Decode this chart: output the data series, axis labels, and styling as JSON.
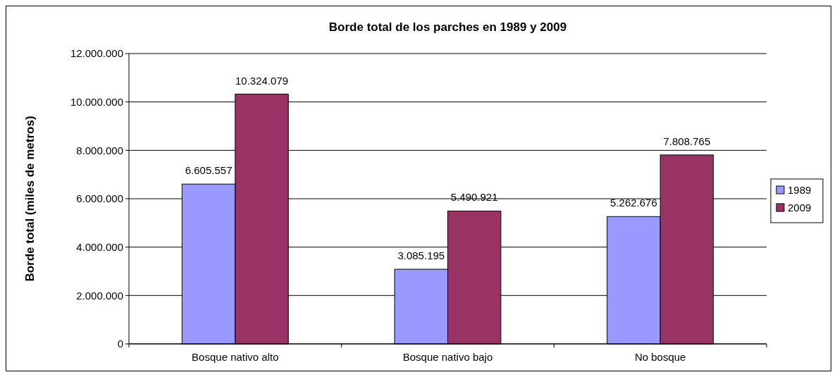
{
  "chart_data": {
    "type": "bar",
    "title": "Borde total de los parches en 1989 y 2009",
    "ylabel": "Borde total (miles de metros)",
    "categories": [
      "Bosque nativo alto",
      "Bosque nativo bajo",
      "No bosque"
    ],
    "series": [
      {
        "name": "1989",
        "color": "#9999ff",
        "values": [
          6605557,
          3085195,
          5262676
        ],
        "value_labels": [
          "6.605.557",
          "3.085.195",
          "5.262.676"
        ]
      },
      {
        "name": "2009",
        "color": "#993366",
        "values": [
          10324079,
          5490921,
          7808765
        ],
        "value_labels": [
          "10.324.079",
          "5.490.921",
          "7.808.765"
        ]
      }
    ],
    "ylim": [
      0,
      12000000
    ],
    "yticks": [
      {
        "value": 0,
        "label": "0"
      },
      {
        "value": 2000000,
        "label": "2.000.000"
      },
      {
        "value": 4000000,
        "label": "4.000.000"
      },
      {
        "value": 6000000,
        "label": "6.000.000"
      },
      {
        "value": 8000000,
        "label": "8.000.000"
      },
      {
        "value": 10000000,
        "label": "10.000.000"
      },
      {
        "value": 12000000,
        "label": "12.000.000"
      }
    ],
    "grid": "y",
    "legend": "right"
  }
}
